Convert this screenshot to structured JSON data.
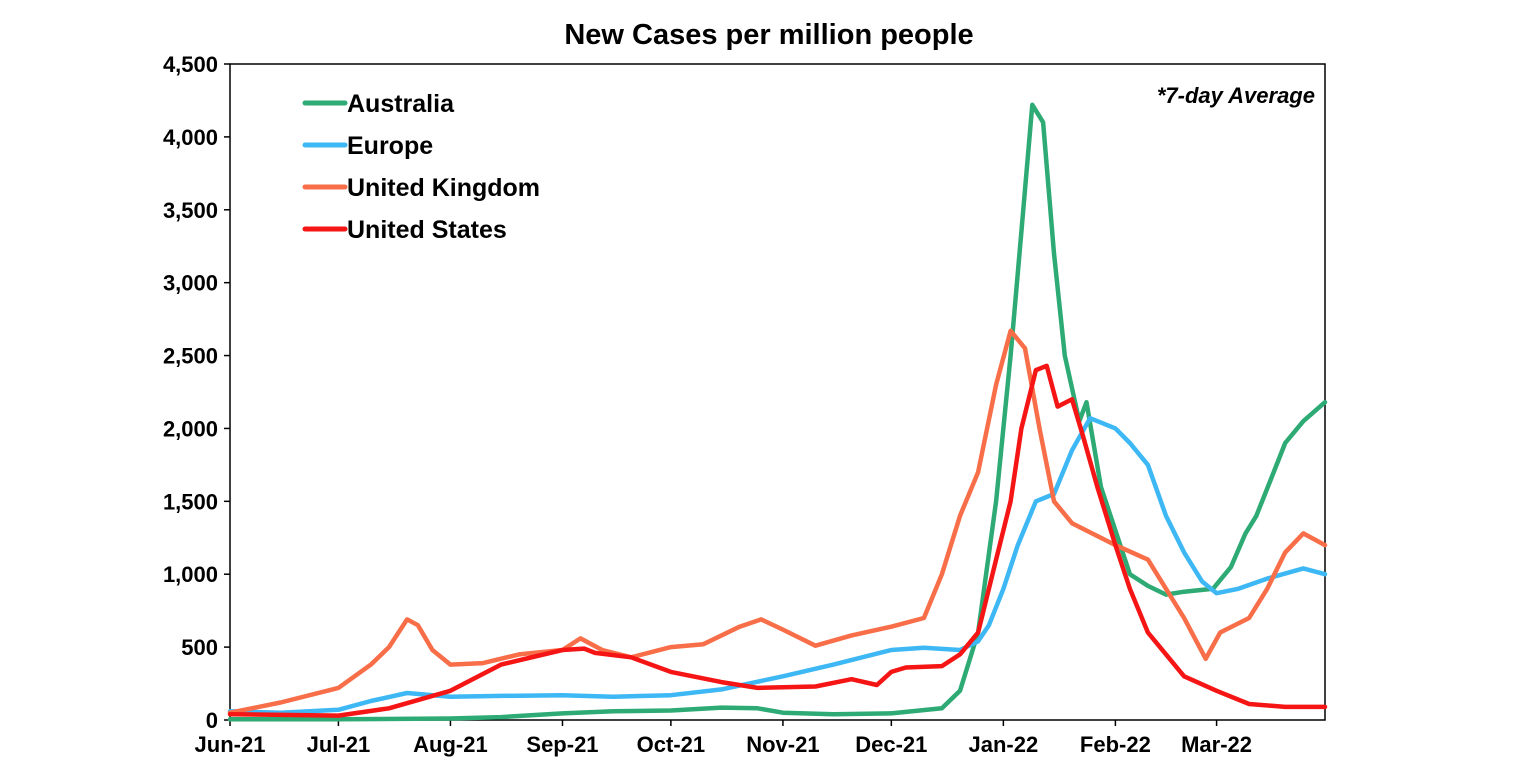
{
  "chart_data": {
    "type": "line",
    "title": "New Cases per million people",
    "annotation": "*7-day Average",
    "xlabel": "",
    "ylabel": "",
    "x_type": "date",
    "xlim": [
      "2021-06-01",
      "2022-03-31"
    ],
    "ylim": [
      0,
      4500
    ],
    "y_ticks": [
      0,
      500,
      1000,
      1500,
      2000,
      2500,
      3000,
      3500,
      4000,
      4500
    ],
    "y_tick_labels": [
      "0",
      "500",
      "1,000",
      "1,500",
      "2,000",
      "2,500",
      "3,000",
      "3,500",
      "4,000",
      "4,500"
    ],
    "x_ticks": [
      "2021-06-01",
      "2021-07-01",
      "2021-08-01",
      "2021-09-01",
      "2021-10-01",
      "2021-11-01",
      "2021-12-01",
      "2022-01-01",
      "2022-02-01",
      "2022-03-01"
    ],
    "x_tick_labels": [
      "Jun-21",
      "Jul-21",
      "Aug-21",
      "Sep-21",
      "Oct-21",
      "Nov-21",
      "Dec-21",
      "Jan-22",
      "Feb-22",
      "Mar-22"
    ],
    "grid": false,
    "legend_position": "top-left",
    "series": [
      {
        "name": "Australia",
        "color": "#2EAA75",
        "points": [
          [
            "2021-06-01",
            5
          ],
          [
            "2021-07-01",
            5
          ],
          [
            "2021-08-01",
            10
          ],
          [
            "2021-08-15",
            20
          ],
          [
            "2021-09-01",
            45
          ],
          [
            "2021-09-15",
            60
          ],
          [
            "2021-10-01",
            65
          ],
          [
            "2021-10-15",
            85
          ],
          [
            "2021-10-25",
            80
          ],
          [
            "2021-11-01",
            50
          ],
          [
            "2021-11-15",
            40
          ],
          [
            "2021-12-01",
            45
          ],
          [
            "2021-12-15",
            80
          ],
          [
            "2021-12-20",
            200
          ],
          [
            "2021-12-25",
            600
          ],
          [
            "2021-12-30",
            1500
          ],
          [
            "2022-01-03",
            2500
          ],
          [
            "2022-01-06",
            3350
          ],
          [
            "2022-01-09",
            4220
          ],
          [
            "2022-01-12",
            4100
          ],
          [
            "2022-01-15",
            3200
          ],
          [
            "2022-01-18",
            2500
          ],
          [
            "2022-01-22",
            2050
          ],
          [
            "2022-01-24",
            2180
          ],
          [
            "2022-01-28",
            1600
          ],
          [
            "2022-02-01",
            1300
          ],
          [
            "2022-02-05",
            1000
          ],
          [
            "2022-02-10",
            920
          ],
          [
            "2022-02-15",
            860
          ],
          [
            "2022-02-20",
            880
          ],
          [
            "2022-02-28",
            900
          ],
          [
            "2022-03-05",
            1050
          ],
          [
            "2022-03-09",
            1280
          ],
          [
            "2022-03-12",
            1400
          ],
          [
            "2022-03-16",
            1650
          ],
          [
            "2022-03-20",
            1900
          ],
          [
            "2022-03-25",
            2050
          ],
          [
            "2022-03-31",
            2180
          ]
        ]
      },
      {
        "name": "Europe",
        "color": "#3DB8F5",
        "points": [
          [
            "2021-06-01",
            60
          ],
          [
            "2021-06-15",
            50
          ],
          [
            "2021-07-01",
            70
          ],
          [
            "2021-07-10",
            130
          ],
          [
            "2021-07-20",
            185
          ],
          [
            "2021-08-01",
            160
          ],
          [
            "2021-08-15",
            165
          ],
          [
            "2021-09-01",
            170
          ],
          [
            "2021-09-15",
            160
          ],
          [
            "2021-10-01",
            170
          ],
          [
            "2021-10-15",
            210
          ],
          [
            "2021-11-01",
            300
          ],
          [
            "2021-11-15",
            380
          ],
          [
            "2021-12-01",
            480
          ],
          [
            "2021-12-10",
            495
          ],
          [
            "2021-12-20",
            480
          ],
          [
            "2021-12-25",
            540
          ],
          [
            "2021-12-28",
            650
          ],
          [
            "2022-01-01",
            900
          ],
          [
            "2022-01-05",
            1200
          ],
          [
            "2022-01-10",
            1500
          ],
          [
            "2022-01-15",
            1550
          ],
          [
            "2022-01-20",
            1850
          ],
          [
            "2022-01-25",
            2070
          ],
          [
            "2022-02-01",
            2000
          ],
          [
            "2022-02-05",
            1900
          ],
          [
            "2022-02-10",
            1750
          ],
          [
            "2022-02-15",
            1400
          ],
          [
            "2022-02-20",
            1150
          ],
          [
            "2022-02-25",
            950
          ],
          [
            "2022-03-01",
            870
          ],
          [
            "2022-03-07",
            900
          ],
          [
            "2022-03-15",
            970
          ],
          [
            "2022-03-25",
            1040
          ],
          [
            "2022-03-31",
            1000
          ]
        ]
      },
      {
        "name": "United Kingdom",
        "color": "#F86E48",
        "points": [
          [
            "2021-06-01",
            50
          ],
          [
            "2021-06-15",
            120
          ],
          [
            "2021-07-01",
            220
          ],
          [
            "2021-07-10",
            380
          ],
          [
            "2021-07-15",
            500
          ],
          [
            "2021-07-20",
            690
          ],
          [
            "2021-07-23",
            650
          ],
          [
            "2021-07-27",
            480
          ],
          [
            "2021-08-01",
            380
          ],
          [
            "2021-08-10",
            390
          ],
          [
            "2021-08-20",
            450
          ],
          [
            "2021-09-01",
            480
          ],
          [
            "2021-09-06",
            560
          ],
          [
            "2021-09-12",
            480
          ],
          [
            "2021-09-20",
            430
          ],
          [
            "2021-10-01",
            500
          ],
          [
            "2021-10-10",
            520
          ],
          [
            "2021-10-20",
            640
          ],
          [
            "2021-10-26",
            690
          ],
          [
            "2021-11-01",
            620
          ],
          [
            "2021-11-10",
            510
          ],
          [
            "2021-11-20",
            580
          ],
          [
            "2021-12-01",
            640
          ],
          [
            "2021-12-10",
            700
          ],
          [
            "2021-12-15",
            1000
          ],
          [
            "2021-12-20",
            1400
          ],
          [
            "2021-12-25",
            1700
          ],
          [
            "2021-12-30",
            2300
          ],
          [
            "2022-01-03",
            2670
          ],
          [
            "2022-01-07",
            2550
          ],
          [
            "2022-01-11",
            2000
          ],
          [
            "2022-01-15",
            1500
          ],
          [
            "2022-01-20",
            1350
          ],
          [
            "2022-02-01",
            1200
          ],
          [
            "2022-02-10",
            1100
          ],
          [
            "2022-02-15",
            900
          ],
          [
            "2022-02-20",
            700
          ],
          [
            "2022-02-26",
            420
          ],
          [
            "2022-03-02",
            600
          ],
          [
            "2022-03-10",
            700
          ],
          [
            "2022-03-15",
            900
          ],
          [
            "2022-03-20",
            1150
          ],
          [
            "2022-03-25",
            1280
          ],
          [
            "2022-03-31",
            1200
          ]
        ]
      },
      {
        "name": "United States",
        "color": "#F51515",
        "points": [
          [
            "2021-06-01",
            40
          ],
          [
            "2021-07-01",
            30
          ],
          [
            "2021-07-15",
            80
          ],
          [
            "2021-08-01",
            200
          ],
          [
            "2021-08-15",
            380
          ],
          [
            "2021-09-01",
            480
          ],
          [
            "2021-09-07",
            490
          ],
          [
            "2021-09-10",
            460
          ],
          [
            "2021-09-20",
            430
          ],
          [
            "2021-10-01",
            330
          ],
          [
            "2021-10-15",
            260
          ],
          [
            "2021-10-25",
            220
          ],
          [
            "2021-11-10",
            230
          ],
          [
            "2021-11-20",
            280
          ],
          [
            "2021-11-27",
            240
          ],
          [
            "2021-12-01",
            330
          ],
          [
            "2021-12-05",
            360
          ],
          [
            "2021-12-15",
            370
          ],
          [
            "2021-12-20",
            450
          ],
          [
            "2021-12-25",
            600
          ],
          [
            "2021-12-30",
            1100
          ],
          [
            "2022-01-03",
            1500
          ],
          [
            "2022-01-06",
            2000
          ],
          [
            "2022-01-10",
            2400
          ],
          [
            "2022-01-13",
            2430
          ],
          [
            "2022-01-16",
            2150
          ],
          [
            "2022-01-20",
            2200
          ],
          [
            "2022-01-23",
            1950
          ],
          [
            "2022-01-27",
            1600
          ],
          [
            "2022-02-01",
            1200
          ],
          [
            "2022-02-05",
            900
          ],
          [
            "2022-02-10",
            600
          ],
          [
            "2022-02-15",
            450
          ],
          [
            "2022-02-20",
            300
          ],
          [
            "2022-03-01",
            200
          ],
          [
            "2022-03-10",
            110
          ],
          [
            "2022-03-20",
            90
          ],
          [
            "2022-03-31",
            90
          ]
        ]
      }
    ]
  }
}
